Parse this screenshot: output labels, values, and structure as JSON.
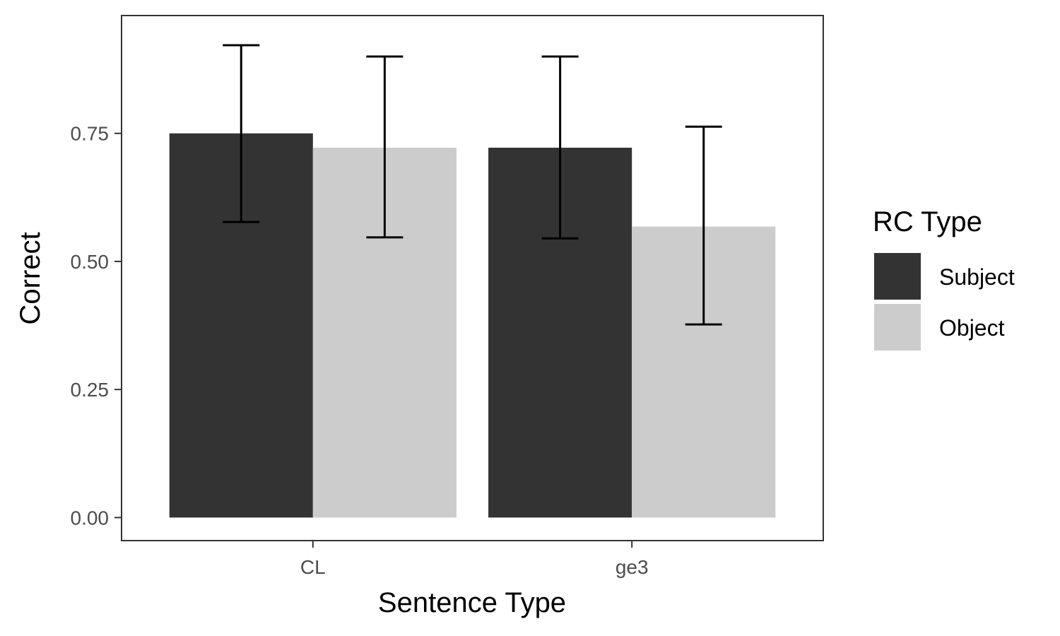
{
  "chart_data": {
    "type": "bar",
    "xlabel": "Sentence Type",
    "ylabel": "Correct",
    "categories": [
      "CL",
      "ge3"
    ],
    "ylim": [
      -0.045,
      0.98
    ],
    "yticks": [
      0.0,
      0.25,
      0.5,
      0.75
    ],
    "ytick_labels": [
      "0.00",
      "0.25",
      "0.50",
      "0.75"
    ],
    "grid": false,
    "legend": {
      "title": "RC Type",
      "position": "right"
    },
    "series": [
      {
        "name": "Subject",
        "color": "#333333",
        "values": [
          0.75,
          0.722
        ],
        "error_low": [
          0.577,
          0.545
        ],
        "error_high": [
          0.922,
          0.9
        ]
      },
      {
        "name": "Object",
        "color": "#cccccc",
        "values": [
          0.722,
          0.568
        ],
        "error_low": [
          0.547,
          0.377
        ],
        "error_high": [
          0.9,
          0.763
        ]
      }
    ]
  }
}
